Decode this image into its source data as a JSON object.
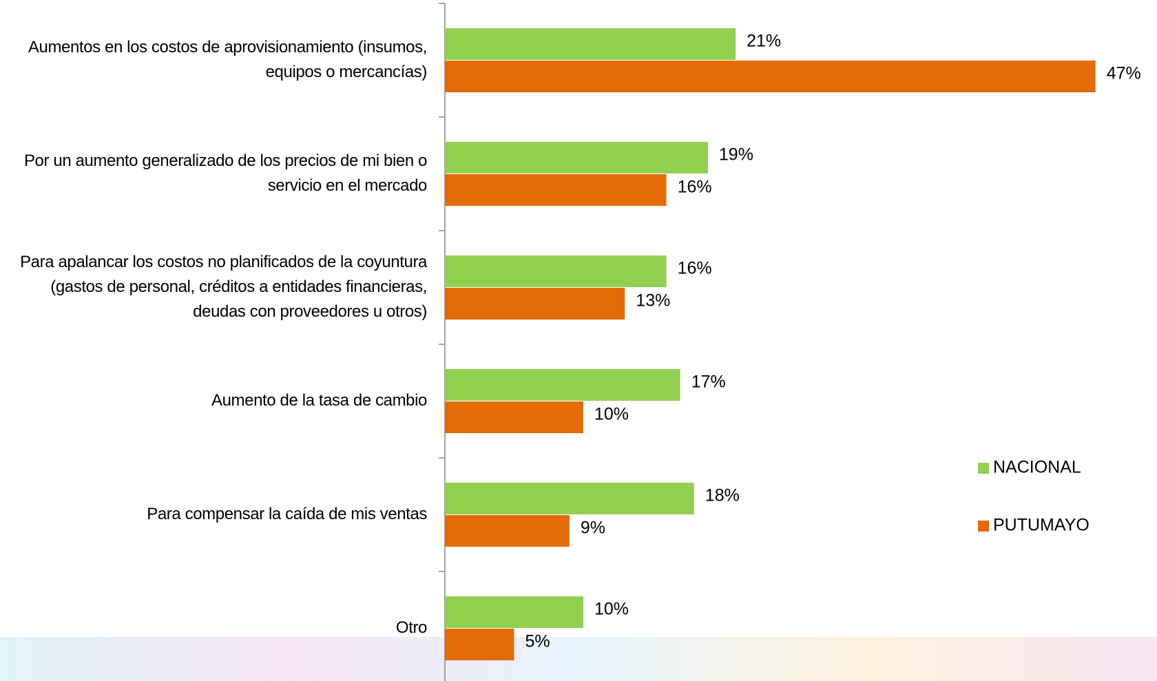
{
  "chart_data": {
    "type": "hbar",
    "categories": [
      "Aumentos en los costos de aprovisionamiento (insumos, equipos o mercancías)",
      "Por un aumento generalizado de los precios de mi bien o servicio en el mercado",
      "Para apalancar los costos no planificados de la coyuntura (gastos de personal, créditos a entidades financieras, deudas con proveedores u otros)",
      "Aumento de la tasa de cambio",
      "Para compensar la caída de mis ventas",
      "Otro"
    ],
    "series": [
      {
        "name": "NACIONAL",
        "color": "#92d050",
        "values": [
          21,
          19,
          16,
          17,
          18,
          10
        ],
        "value_labels": [
          "21%",
          "19%",
          "16%",
          "17%",
          "18%",
          "10%"
        ]
      },
      {
        "name": "PUTUMAYO",
        "color": "#e36c09",
        "values": [
          47,
          16,
          13,
          10,
          9,
          5
        ],
        "value_labels": [
          "47%",
          "16%",
          "13%",
          "10%",
          "9%",
          "5%"
        ]
      }
    ],
    "xlim": [
      0,
      50
    ],
    "legend": "right"
  }
}
